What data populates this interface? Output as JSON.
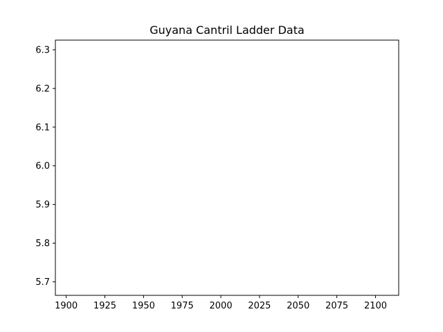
{
  "chart_data": {
    "type": "line",
    "title": "Guyana Cantril Ladder Data",
    "xlabel": "",
    "ylabel": "",
    "xlim": [
      1893,
      2115
    ],
    "ylim": [
      5.665,
      6.325
    ],
    "xticks": [
      1900,
      1925,
      1950,
      1975,
      2000,
      2025,
      2050,
      2075,
      2100
    ],
    "yticks": [
      5.7,
      5.8,
      5.9,
      6.0,
      6.1,
      6.2,
      6.3
    ],
    "series": [],
    "grid": false,
    "legend": "none"
  }
}
